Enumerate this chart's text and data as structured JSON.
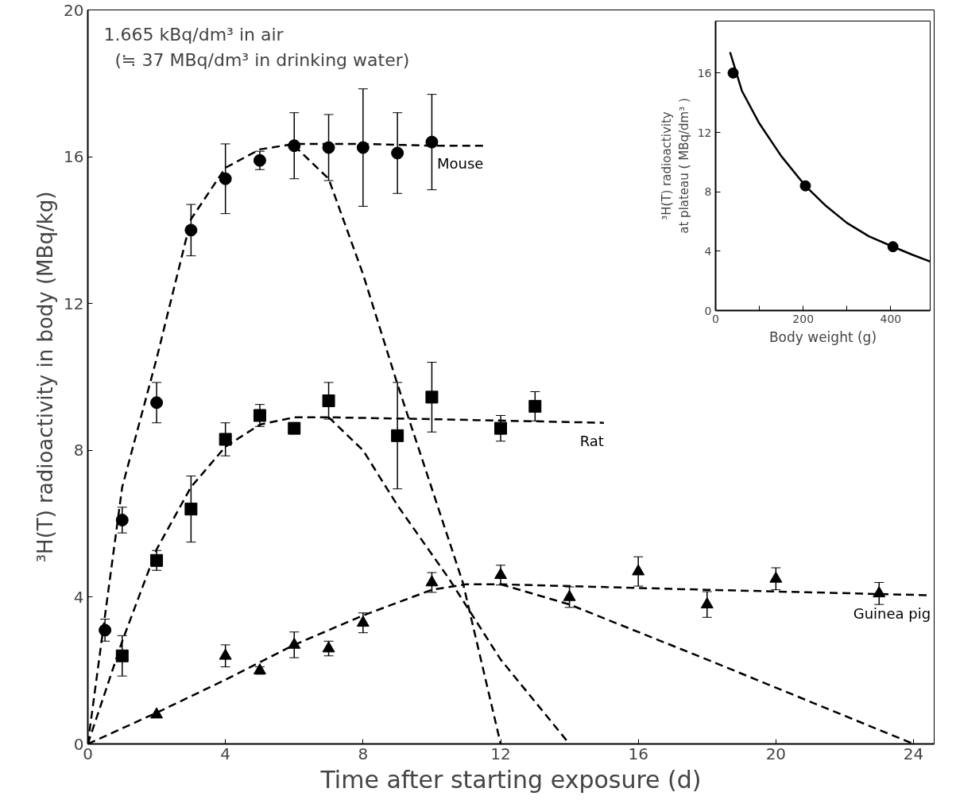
{
  "chart_data": [
    {
      "type": "scatter",
      "xlabel": "Time after starting exposure (d)",
      "ylabel": "³H(T) radioactivity in body (MBq/kg)",
      "xlim": [
        0,
        24.6
      ],
      "ylim": [
        0,
        20
      ],
      "xticks": [
        0,
        4,
        8,
        12,
        16,
        20,
        24
      ],
      "yticks": [
        0,
        4,
        8,
        12,
        16,
        20
      ],
      "grid": false,
      "annotations": [
        "1.665 kBq/dm³ in air",
        "(≒ 37 MBq/dm³ in drinking water)"
      ],
      "series": [
        {
          "type": "scatter",
          "marker": "circle",
          "color": "#000000",
          "x": [
            0.5,
            1,
            2,
            3,
            4,
            5,
            6,
            7,
            8,
            9,
            10
          ],
          "values": [
            3.1,
            6.1,
            9.3,
            14.0,
            15.4,
            15.9,
            16.3,
            16.25,
            16.25,
            16.1,
            16.4
          ],
          "errors": [
            0.3,
            0.35,
            0.55,
            0.7,
            0.95,
            0.25,
            0.9,
            0.9,
            1.6,
            1.1,
            1.3
          ]
        },
        {
          "type": "scatter",
          "marker": "square",
          "color": "#000000",
          "x": [
            1,
            2,
            3,
            4,
            5,
            6,
            7,
            9,
            10,
            12,
            13
          ],
          "values": [
            2.4,
            5.0,
            6.4,
            8.3,
            8.95,
            8.6,
            9.35,
            8.4,
            9.45,
            8.6,
            9.2
          ],
          "errors": [
            0.55,
            0.27,
            0.9,
            0.45,
            0.3,
            0.15,
            0.5,
            1.45,
            0.95,
            0.35,
            0.4
          ]
        },
        {
          "type": "scatter",
          "marker": "triangle",
          "color": "#000000",
          "x": [
            2,
            4,
            5,
            6,
            7,
            8,
            10,
            12,
            14,
            16,
            18,
            20,
            23
          ],
          "values": [
            0.8,
            2.4,
            2.0,
            2.7,
            2.6,
            3.3,
            4.4,
            4.6,
            4.0,
            4.7,
            3.8,
            4.5,
            4.1
          ],
          "errors": [
            null,
            0.3,
            0.1,
            0.35,
            0.2,
            0.27,
            0.27,
            0.27,
            0.28,
            0.4,
            0.35,
            0.3,
            0.3
          ]
        },
        {
          "type": "line",
          "name": "Mouse",
          "line_style": "dashed",
          "color": "#000000",
          "x": [
            0,
            1,
            2,
            3,
            4,
            5,
            6,
            8,
            10,
            11.5
          ],
          "values": [
            0,
            7.0,
            10.5,
            14.3,
            15.7,
            16.2,
            16.35,
            16.35,
            16.3,
            16.3
          ]
        },
        {
          "type": "line",
          "name": "Rat",
          "line_style": "dashed",
          "color": "#000000",
          "x": [
            0,
            1,
            2,
            3,
            4,
            5,
            6,
            7,
            10,
            15
          ],
          "values": [
            0,
            2.8,
            5.3,
            7.0,
            8.1,
            8.7,
            8.9,
            8.9,
            8.85,
            8.75
          ]
        },
        {
          "type": "line",
          "name": "Guinea pig",
          "line_style": "dashed",
          "color": "#000000",
          "x": [
            0,
            2,
            4,
            6,
            8,
            10,
            11,
            12,
            18,
            24.5
          ],
          "values": [
            0,
            0.85,
            1.75,
            2.7,
            3.5,
            4.2,
            4.35,
            4.35,
            4.2,
            4.05
          ]
        },
        {
          "type": "line",
          "line_style": "dashed",
          "color": "#000000",
          "x": [
            6,
            7,
            8,
            9,
            10.9,
            12
          ],
          "values": [
            16.3,
            15.4,
            12.8,
            9.8,
            4.4,
            0
          ]
        },
        {
          "type": "line",
          "line_style": "dashed",
          "color": "#000000",
          "x": [
            7,
            8,
            9,
            10.5,
            12,
            14
          ],
          "values": [
            8.9,
            8.0,
            6.5,
            4.5,
            2.3,
            0
          ]
        },
        {
          "type": "line",
          "line_style": "dashed",
          "color": "#000000",
          "x": [
            12,
            14,
            18,
            24
          ],
          "values": [
            4.35,
            3.8,
            2.3,
            0
          ]
        }
      ]
    },
    {
      "type": "scatter",
      "xlabel": "Body weight (g)",
      "ylabel": "³H(T) radioactivity\nat plateau ( MBq/dm³ )",
      "xlim": [
        0,
        490
      ],
      "ylim": [
        0,
        19.5
      ],
      "xticks": [
        0,
        {
          "value": 100,
          "label": null
        },
        200,
        {
          "value": 300,
          "label": null
        },
        400
      ],
      "yticks": [
        0,
        4,
        8,
        12,
        16
      ],
      "grid": false,
      "series": [
        {
          "type": "line",
          "line_style": "solid",
          "color": "#000000",
          "x": [
            33,
            60,
            100,
            150,
            205,
            250,
            300,
            350,
            405,
            450,
            490
          ],
          "values": [
            17.4,
            14.8,
            12.6,
            10.4,
            8.4,
            7.1,
            5.9,
            5.0,
            4.3,
            3.75,
            3.3
          ]
        },
        {
          "type": "scatter",
          "marker": "circle",
          "color": "#000000",
          "x": [
            40,
            205,
            405
          ],
          "values": [
            16,
            8.4,
            4.3
          ]
        }
      ]
    }
  ]
}
